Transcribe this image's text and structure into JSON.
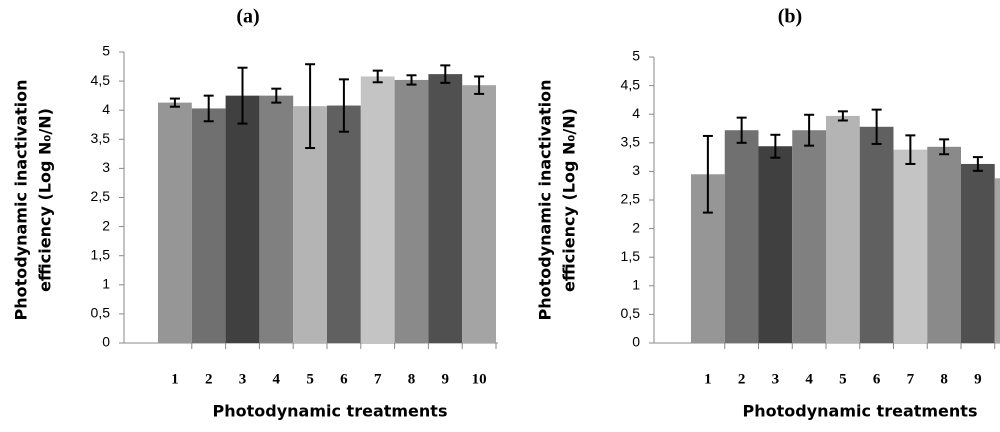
{
  "chart_data": [
    {
      "type": "bar",
      "title": "(a)",
      "y_label": [
        "Photodynamic inactivation",
        "efficiency (Log N₀/N)"
      ],
      "x_label": "Photodynamic treatments",
      "categories": [
        "1",
        "2",
        "3",
        "4",
        "5",
        "6",
        "7",
        "8",
        "9",
        "10"
      ],
      "values": [
        4.13,
        4.03,
        4.25,
        4.25,
        4.07,
        4.08,
        4.58,
        4.52,
        4.62,
        4.43
      ],
      "errors": [
        0.07,
        0.22,
        0.48,
        0.12,
        0.72,
        0.45,
        0.1,
        0.08,
        0.15,
        0.15
      ],
      "colors": [
        "#969696",
        "#707070",
        "#404040",
        "#808080",
        "#b4b4b4",
        "#606060",
        "#c4c4c4",
        "#8a8a8a",
        "#505050",
        "#a4a4a4"
      ],
      "ylim": [
        0,
        5
      ],
      "yticks": [
        0,
        {
          "value": 0.5,
          "label": "0,5"
        },
        1,
        {
          "value": 1.5,
          "label": "1,5"
        },
        2,
        {
          "value": 2.5,
          "label": "2,5"
        },
        3,
        {
          "value": 3.5,
          "label": "3,5"
        },
        4,
        {
          "value": 4.5,
          "label": "4,5"
        },
        5
      ]
    },
    {
      "type": "bar",
      "title": "(b)",
      "y_label": [
        "Photodynamic inactivation",
        "efficiency (Log N₀/N)"
      ],
      "x_label": "Photodynamic treatments",
      "categories": [
        "1",
        "2",
        "3",
        "4",
        "5",
        "6",
        "7",
        "8",
        "9",
        null
      ],
      "values": [
        2.95,
        3.72,
        3.44,
        3.72,
        3.97,
        3.78,
        3.38,
        3.43,
        3.13,
        2.88
      ],
      "errors": [
        0.67,
        0.22,
        0.2,
        0.27,
        0.08,
        0.3,
        0.25,
        0.13,
        0.12,
        null
      ],
      "colors": [
        "#969696",
        "#707070",
        "#404040",
        "#808080",
        "#b4b4b4",
        "#606060",
        "#c4c4c4",
        "#8a8a8a",
        "#505050",
        "#a4a4a4"
      ],
      "ylim": [
        0,
        5
      ],
      "yticks": [
        0,
        {
          "value": 0.5,
          "label": "0,5"
        },
        1,
        {
          "value": 1.5,
          "label": "1,5"
        },
        2,
        {
          "value": 2.5,
          "label": "2,5"
        },
        3,
        {
          "value": 3.5,
          "label": "3,5"
        },
        4,
        {
          "value": 4.5,
          "label": "4,5"
        },
        5
      ]
    }
  ]
}
